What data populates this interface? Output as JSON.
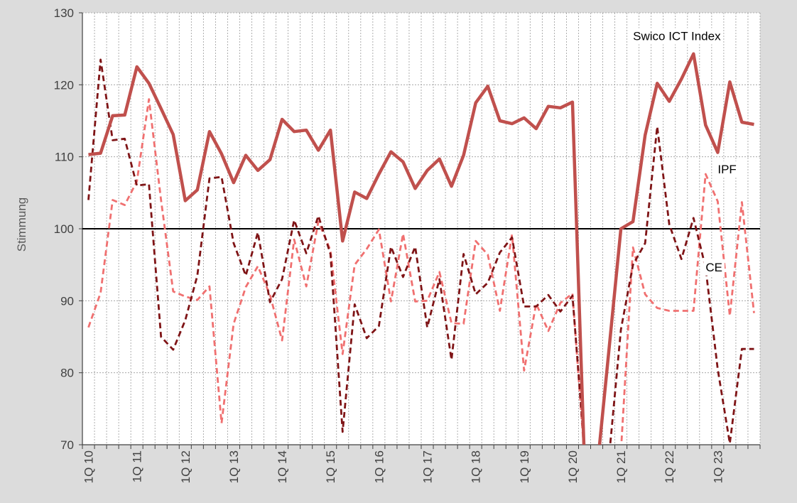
{
  "chart_data": {
    "type": "line",
    "ylabel": "Stimmung",
    "ylim": [
      70,
      130
    ],
    "yticks": [
      70,
      80,
      90,
      100,
      110,
      120,
      130
    ],
    "reference_line": 100,
    "x_tick_labels": [
      "1Q 10",
      "1Q 11",
      "1Q 12",
      "1Q 13",
      "1Q 14",
      "1Q 15",
      "1Q 16",
      "1Q 17",
      "1Q 18",
      "1Q 19",
      "1Q 20",
      "1Q 21",
      "1Q 22",
      "1Q 23"
    ],
    "x_periods": [
      "1Q 10",
      "2Q 10",
      "3Q 10",
      "4Q 10",
      "1Q 11",
      "2Q 11",
      "3Q 11",
      "4Q 11",
      "1Q 12",
      "2Q 12",
      "3Q 12",
      "4Q 12",
      "1Q 13",
      "2Q 13",
      "3Q 13",
      "4Q 13",
      "1Q 14",
      "2Q 14",
      "3Q 14",
      "4Q 14",
      "1Q 15",
      "2Q 15",
      "3Q 15",
      "4Q 15",
      "1Q 16",
      "2Q 16",
      "3Q 16",
      "4Q 16",
      "1Q 17",
      "2Q 17",
      "3Q 17",
      "4Q 17",
      "1Q 18",
      "2Q 18",
      "3Q 18",
      "4Q 18",
      "1Q 19",
      "2Q 19",
      "3Q 19",
      "4Q 19",
      "1Q 20",
      "2Q 20",
      "3Q 20",
      "4Q 20",
      "1Q 21",
      "2Q 21",
      "3Q 21",
      "4Q 21",
      "1Q 22",
      "2Q 22",
      "3Q 22",
      "4Q 22",
      "1Q 23",
      "2Q 23",
      "3Q 23",
      "4Q 23"
    ],
    "series": [
      {
        "name": "Swico ICT Index",
        "color": "#c0504d",
        "style": "solid",
        "values": [
          110.3,
          110.5,
          115.7,
          115.8,
          122.5,
          120.2,
          116.7,
          113.1,
          103.9,
          105.4,
          113.5,
          110.4,
          106.4,
          110.2,
          108.1,
          109.6,
          115.2,
          113.5,
          113.7,
          110.9,
          113.7,
          98.3,
          105.1,
          104.2,
          107.6,
          110.7,
          109.3,
          105.6,
          108.1,
          109.7,
          105.9,
          110.2,
          117.5,
          119.8,
          115.0,
          114.6,
          115.4,
          113.9,
          117.0,
          116.8,
          117.6,
          67.0,
          66.0,
          83.0,
          100.0,
          101.0,
          113.0,
          120.2,
          117.7,
          120.8,
          124.3,
          114.4,
          110.6,
          120.4,
          114.8,
          114.5
        ]
      },
      {
        "name": "CE",
        "color": "#7f1416",
        "style": "dashed",
        "values": [
          104.0,
          123.5,
          112.3,
          112.5,
          106.0,
          106.2,
          85.0,
          83.2,
          87.3,
          93.5,
          107.0,
          107.2,
          98.0,
          93.5,
          99.5,
          89.8,
          93.0,
          101.2,
          96.6,
          101.8,
          96.5,
          71.8,
          89.5,
          84.8,
          86.5,
          97.5,
          93.3,
          97.5,
          86.3,
          93.0,
          81.8,
          96.5,
          90.9,
          92.5,
          96.7,
          98.8,
          89.2,
          89.2,
          90.8,
          88.5,
          90.7,
          69.0,
          68.0,
          68.0,
          86.0,
          95.0,
          98.0,
          114.2,
          100.6,
          95.8,
          101.5,
          94.6,
          80.5,
          70.2,
          83.3,
          83.3
        ]
      },
      {
        "name": "IPF",
        "color": "#f07070",
        "style": "dashed",
        "values": [
          86.3,
          91.1,
          104.0,
          103.3,
          106.6,
          118.0,
          104.0,
          91.3,
          90.6,
          90.1,
          92.0,
          73.0,
          86.8,
          91.9,
          94.8,
          90.8,
          84.5,
          98.5,
          92.0,
          101.0,
          97.0,
          82.6,
          95.0,
          97.2,
          99.9,
          89.9,
          99.3,
          89.9,
          90.0,
          94.0,
          86.9,
          86.8,
          98.3,
          96.4,
          88.6,
          99.2,
          80.3,
          89.6,
          85.8,
          89.7,
          91.0,
          68.0,
          67.0,
          67.0,
          69.0,
          97.4,
          90.9,
          89.0,
          88.6,
          88.6,
          88.6,
          107.6,
          103.8,
          87.9,
          103.7,
          88.3
        ]
      }
    ],
    "annotations": [
      {
        "text": "Swico ICT Index",
        "x_period": "2Q 21",
        "y": 126.2
      },
      {
        "text": "IPF",
        "x_period": "1Q 23",
        "y": 107.7
      },
      {
        "text": "CE",
        "x_period": "4Q 22",
        "y": 94.1
      }
    ],
    "grid": true
  }
}
